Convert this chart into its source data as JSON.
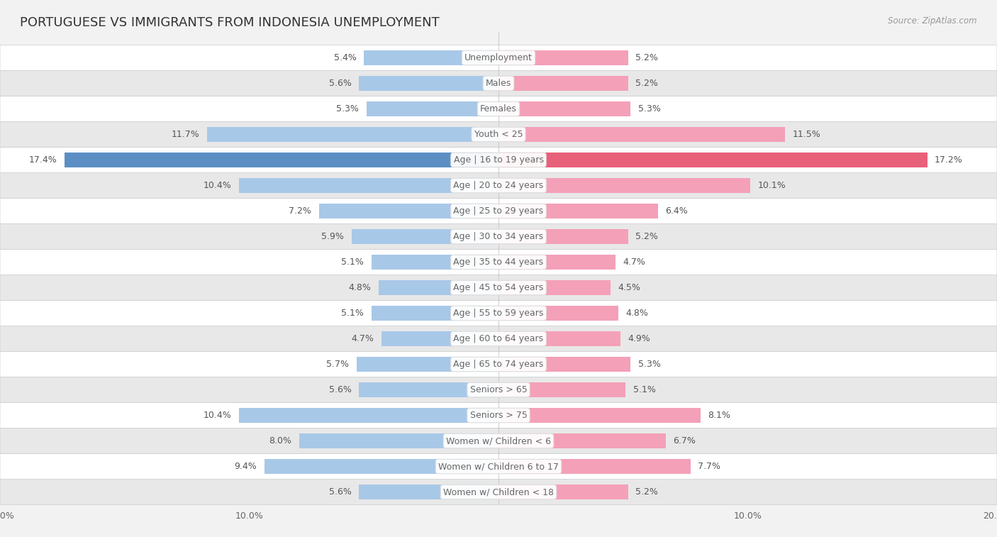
{
  "title": "PORTUGUESE VS IMMIGRANTS FROM INDONESIA UNEMPLOYMENT",
  "source": "Source: ZipAtlas.com",
  "categories": [
    "Unemployment",
    "Males",
    "Females",
    "Youth < 25",
    "Age | 16 to 19 years",
    "Age | 20 to 24 years",
    "Age | 25 to 29 years",
    "Age | 30 to 34 years",
    "Age | 35 to 44 years",
    "Age | 45 to 54 years",
    "Age | 55 to 59 years",
    "Age | 60 to 64 years",
    "Age | 65 to 74 years",
    "Seniors > 65",
    "Seniors > 75",
    "Women w/ Children < 6",
    "Women w/ Children 6 to 17",
    "Women w/ Children < 18"
  ],
  "portuguese_values": [
    5.4,
    5.6,
    5.3,
    11.7,
    17.4,
    10.4,
    7.2,
    5.9,
    5.1,
    4.8,
    5.1,
    4.7,
    5.7,
    5.6,
    10.4,
    8.0,
    9.4,
    5.6
  ],
  "indonesia_values": [
    5.2,
    5.2,
    5.3,
    11.5,
    17.2,
    10.1,
    6.4,
    5.2,
    4.7,
    4.5,
    4.8,
    4.9,
    5.3,
    5.1,
    8.1,
    6.7,
    7.7,
    5.2
  ],
  "portuguese_color": "#a8c8e8",
  "indonesia_color": "#f4a0b8",
  "highlight_portuguese_color": "#5b8fc4",
  "highlight_indonesia_color": "#e8607a",
  "background_color": "#f2f2f2",
  "row_color_even": "#ffffff",
  "row_color_odd": "#e8e8e8",
  "max_value": 20.0,
  "bar_height": 0.6,
  "label_fontsize": 9.0,
  "category_fontsize": 9.0,
  "title_fontsize": 13,
  "value_label_color": "#555555",
  "category_label_color": "#666666",
  "legend_fontsize": 10
}
